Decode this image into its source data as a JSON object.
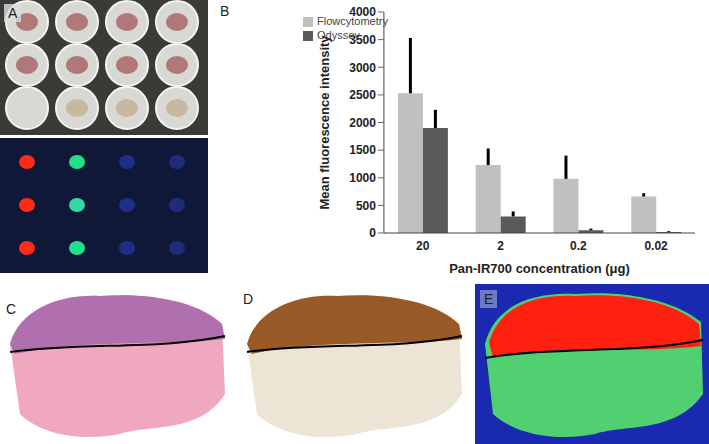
{
  "panels": [
    "A",
    "B",
    "C",
    "D",
    "E"
  ],
  "chart_data": {
    "type": "bar",
    "xlabel": "Pan-IR700 concentration (μg)",
    "ylabel": "Mean fluorescence intensity",
    "categories": [
      "20",
      "2",
      "0.2",
      "0.02"
    ],
    "series": [
      {
        "name": "Flowcytometry",
        "color": "#c0c0c0",
        "values": [
          2530,
          1230,
          980,
          660
        ],
        "errors": [
          1000,
          300,
          420,
          60
        ]
      },
      {
        "name": "Odyssey",
        "color": "#5a5a5a",
        "values": [
          1900,
          300,
          50,
          20
        ],
        "errors": [
          330,
          90,
          30,
          15
        ]
      }
    ],
    "ylim": [
      0,
      4000
    ],
    "yticks": [
      0,
      500,
      1000,
      1500,
      2000,
      2500,
      3000,
      3500,
      4000
    ],
    "grid": false,
    "legend": "upper left"
  }
}
